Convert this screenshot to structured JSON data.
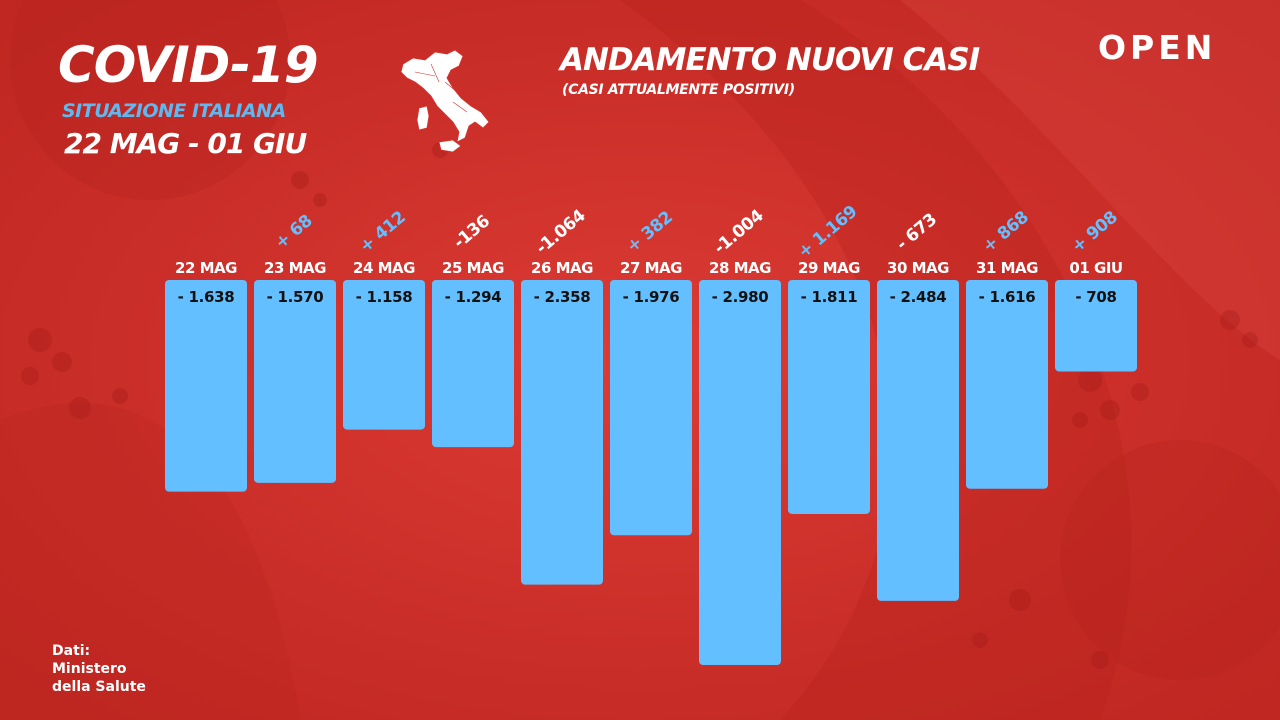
{
  "header": {
    "title": "COVID-19",
    "subtitle": "SITUAZIONE ITALIANA",
    "date_range": "22 MAG - 01 GIU"
  },
  "chart_header": {
    "title": "ANDAMENTO NUOVI CASI",
    "subtitle": "(CASI ATTUALMENTE POSITIVI)"
  },
  "logo": {
    "text": "OPEN"
  },
  "source": {
    "lines": [
      "Dati:",
      "Ministero",
      "della Salute"
    ]
  },
  "colors": {
    "background": "#d7312b",
    "bar": "#63bfff",
    "delta_positive": "#63bfff",
    "delta_negative": "#ffffff"
  },
  "chart_data": {
    "type": "bar",
    "title": "ANDAMENTO NUOVI CASI",
    "subtitle": "(CASI ATTUALMENTE POSITIVI)",
    "xlabel": "",
    "ylabel": "",
    "orientation": "downward",
    "grid": false,
    "categories": [
      "22 MAG",
      "23 MAG",
      "24 MAG",
      "25 MAG",
      "26 MAG",
      "27 MAG",
      "28 MAG",
      "29 MAG",
      "30 MAG",
      "31 MAG",
      "01 GIU"
    ],
    "values": [
      -1638,
      -1570,
      -1158,
      -1294,
      -2358,
      -1976,
      -2980,
      -1811,
      -2484,
      -1616,
      -708
    ],
    "value_labels": [
      "- 1.638",
      "- 1.570",
      "- 1.158",
      "- 1.294",
      "- 2.358",
      "- 1.976",
      "- 2.980",
      "- 1.811",
      "- 2.484",
      "- 1.616",
      "- 708"
    ],
    "deltas": [
      null,
      68,
      412,
      -136,
      -1064,
      382,
      -1004,
      1169,
      -673,
      868,
      908
    ],
    "delta_labels": [
      "",
      "+ 68",
      "+ 412",
      "-136",
      "-1.064",
      "+ 382",
      "-1.004",
      "+ 1.169",
      "- 673",
      "+ 868",
      "+ 908"
    ]
  }
}
